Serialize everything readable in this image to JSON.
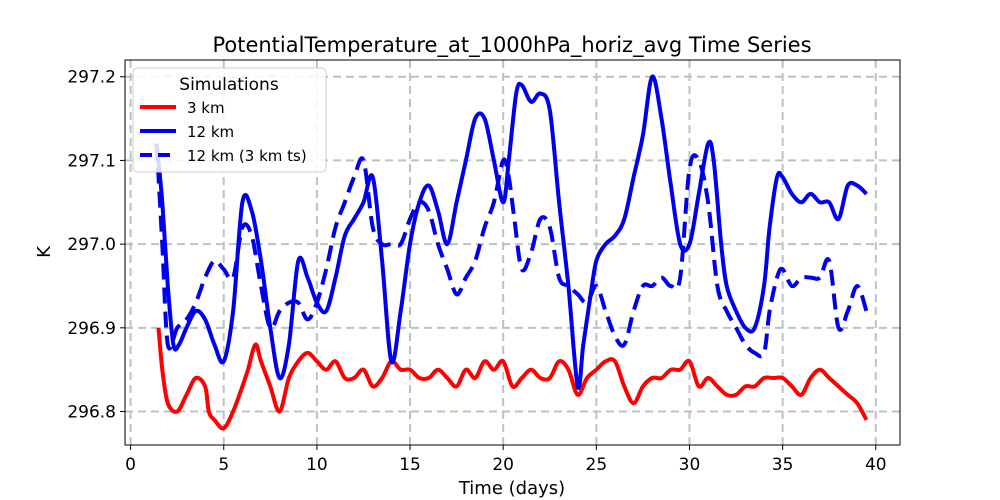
{
  "chart_data": {
    "type": "line",
    "title": "PotentialTemperature_at_1000hPa_horiz_avg Time Series",
    "xlabel": "Time (days)",
    "ylabel": "K",
    "xlim": [
      -0.3,
      41.3
    ],
    "ylim": [
      296.76,
      297.22
    ],
    "xticks": [
      0,
      5,
      10,
      15,
      20,
      25,
      30,
      35,
      40
    ],
    "yticks": [
      296.8,
      296.9,
      297.0,
      297.1,
      297.2
    ],
    "ytick_labels": [
      "296.8",
      "296.9",
      "297.0",
      "297.1",
      "297.2"
    ],
    "grid": true,
    "legend": {
      "title": "Simulations",
      "placement": "top-left"
    },
    "series": [
      {
        "name": "3 km",
        "color": "#ff0000",
        "style": "solid",
        "x": [
          1.5,
          1.7,
          2.0,
          2.5,
          3.0,
          3.5,
          4.0,
          4.2,
          4.5,
          5.0,
          5.5,
          6.0,
          6.3,
          6.7,
          7.0,
          7.5,
          8.0,
          8.5,
          9.0,
          9.5,
          10.0,
          10.5,
          11.0,
          11.5,
          12.0,
          12.5,
          13.0,
          13.5,
          14.0,
          14.5,
          15.0,
          15.5,
          16.0,
          16.5,
          17.0,
          17.5,
          18.0,
          18.5,
          19.0,
          19.5,
          20.0,
          20.5,
          21.0,
          21.5,
          22.0,
          22.5,
          23.0,
          23.5,
          24.0,
          24.5,
          25.0,
          25.5,
          26.0,
          26.5,
          27.0,
          27.5,
          28.0,
          28.5,
          29.0,
          29.5,
          30.0,
          30.5,
          31.0,
          31.5,
          32.0,
          32.5,
          33.0,
          33.5,
          34.0,
          34.5,
          35.0,
          35.5,
          36.0,
          36.5,
          37.0,
          37.5,
          38.0,
          38.5,
          39.0,
          39.5
        ],
        "values": [
          296.9,
          296.85,
          296.81,
          296.8,
          296.82,
          296.84,
          296.83,
          296.8,
          296.79,
          296.78,
          296.8,
          296.83,
          296.85,
          296.88,
          296.86,
          296.83,
          296.8,
          296.84,
          296.86,
          296.87,
          296.86,
          296.85,
          296.86,
          296.84,
          296.84,
          296.85,
          296.83,
          296.84,
          296.86,
          296.85,
          296.85,
          296.84,
          296.84,
          296.85,
          296.84,
          296.83,
          296.85,
          296.84,
          296.86,
          296.85,
          296.86,
          296.83,
          296.84,
          296.85,
          296.84,
          296.84,
          296.86,
          296.85,
          296.82,
          296.84,
          296.85,
          296.86,
          296.86,
          296.83,
          296.81,
          296.83,
          296.84,
          296.84,
          296.85,
          296.85,
          296.86,
          296.83,
          296.84,
          296.83,
          296.82,
          296.82,
          296.83,
          296.83,
          296.84,
          296.84,
          296.84,
          296.83,
          296.82,
          296.84,
          296.85,
          296.84,
          296.83,
          296.82,
          296.81,
          296.79
        ]
      },
      {
        "name": "12 km",
        "color": "#0000ee",
        "style": "solid",
        "x": [
          1.4,
          1.7,
          2.0,
          2.3,
          2.6,
          3.0,
          3.5,
          4.0,
          4.5,
          5.0,
          5.5,
          6.0,
          6.5,
          7.0,
          7.5,
          8.0,
          8.5,
          9.0,
          9.5,
          10.0,
          10.5,
          11.0,
          11.5,
          12.0,
          12.5,
          13.0,
          13.5,
          14.0,
          14.5,
          15.0,
          15.5,
          16.0,
          16.5,
          17.0,
          17.5,
          18.0,
          18.5,
          19.0,
          19.5,
          20.0,
          20.3,
          20.7,
          21.0,
          21.5,
          22.0,
          22.5,
          23.0,
          23.5,
          24.0,
          24.3,
          24.7,
          25.0,
          25.5,
          26.0,
          26.5,
          27.0,
          27.5,
          28.0,
          28.5,
          29.0,
          29.5,
          30.0,
          30.5,
          31.0,
          31.3,
          31.7,
          32.0,
          32.5,
          33.0,
          33.5,
          34.0,
          34.3,
          34.7,
          35.0,
          35.5,
          36.0,
          36.5,
          37.0,
          37.5,
          38.0,
          38.5,
          39.0,
          39.5
        ],
        "values": [
          297.12,
          297.05,
          296.95,
          296.88,
          296.88,
          296.9,
          296.92,
          296.91,
          296.88,
          296.86,
          296.92,
          297.05,
          297.04,
          296.98,
          296.9,
          296.84,
          296.88,
          296.98,
          296.96,
          296.93,
          296.92,
          296.96,
          297.01,
          297.03,
          297.05,
          297.08,
          296.98,
          296.86,
          296.92,
          297.0,
          297.05,
          297.07,
          297.04,
          297.0,
          297.05,
          297.1,
          297.15,
          297.15,
          297.1,
          297.05,
          297.1,
          297.18,
          297.19,
          297.17,
          297.18,
          297.16,
          297.05,
          296.95,
          296.83,
          296.88,
          296.94,
          296.98,
          297.0,
          297.01,
          297.03,
          297.08,
          297.13,
          297.2,
          297.15,
          297.07,
          297.0,
          297.0,
          297.06,
          297.12,
          297.1,
          297.0,
          296.95,
          296.92,
          296.9,
          296.9,
          296.95,
          297.02,
          297.08,
          297.08,
          297.06,
          297.05,
          297.06,
          297.05,
          297.05,
          297.03,
          297.07,
          297.07,
          297.06
        ]
      },
      {
        "name": "12 km (3 km ts)",
        "color": "#0000ee",
        "style": "dashed",
        "x": [
          1.4,
          1.7,
          2.0,
          2.5,
          3.0,
          3.5,
          4.0,
          4.5,
          5.0,
          5.5,
          6.0,
          6.5,
          7.0,
          7.5,
          8.0,
          8.5,
          9.0,
          9.5,
          10.0,
          10.5,
          11.0,
          11.5,
          12.0,
          12.5,
          13.0,
          13.5,
          14.0,
          14.5,
          15.0,
          15.5,
          16.0,
          16.5,
          17.0,
          17.5,
          18.0,
          18.5,
          19.0,
          19.5,
          20.0,
          20.3,
          20.6,
          21.0,
          21.5,
          22.0,
          22.5,
          23.0,
          23.5,
          24.0,
          24.5,
          25.0,
          25.5,
          26.0,
          26.5,
          27.0,
          27.5,
          28.0,
          28.5,
          29.0,
          29.5,
          30.0,
          30.5,
          31.0,
          31.5,
          32.0,
          32.5,
          33.0,
          33.5,
          34.0,
          34.3,
          34.7,
          35.0,
          35.5,
          36.0,
          36.5,
          37.0,
          37.5,
          38.0,
          38.5,
          39.0,
          39.5
        ],
        "values": [
          297.12,
          297.0,
          296.88,
          296.9,
          296.91,
          296.93,
          296.96,
          296.98,
          296.97,
          296.96,
          297.02,
          297.01,
          296.95,
          296.9,
          296.92,
          296.93,
          296.93,
          296.91,
          296.93,
          296.97,
          297.02,
          297.05,
          297.08,
          297.1,
          297.02,
          297.0,
          297.0,
          297.0,
          297.03,
          297.05,
          297.04,
          297.0,
          296.97,
          296.94,
          296.96,
          296.98,
          297.02,
          297.05,
          297.1,
          297.08,
          297.03,
          296.97,
          296.99,
          297.03,
          297.02,
          296.96,
          296.95,
          296.94,
          296.93,
          296.95,
          296.92,
          296.89,
          296.88,
          296.92,
          296.95,
          296.95,
          296.96,
          296.95,
          296.96,
          297.09,
          297.1,
          297.05,
          296.95,
          296.92,
          296.9,
          296.88,
          296.87,
          296.87,
          296.92,
          296.96,
          296.97,
          296.95,
          296.96,
          296.96,
          296.96,
          296.98,
          296.9,
          296.92,
          296.95,
          296.92
        ]
      }
    ]
  }
}
